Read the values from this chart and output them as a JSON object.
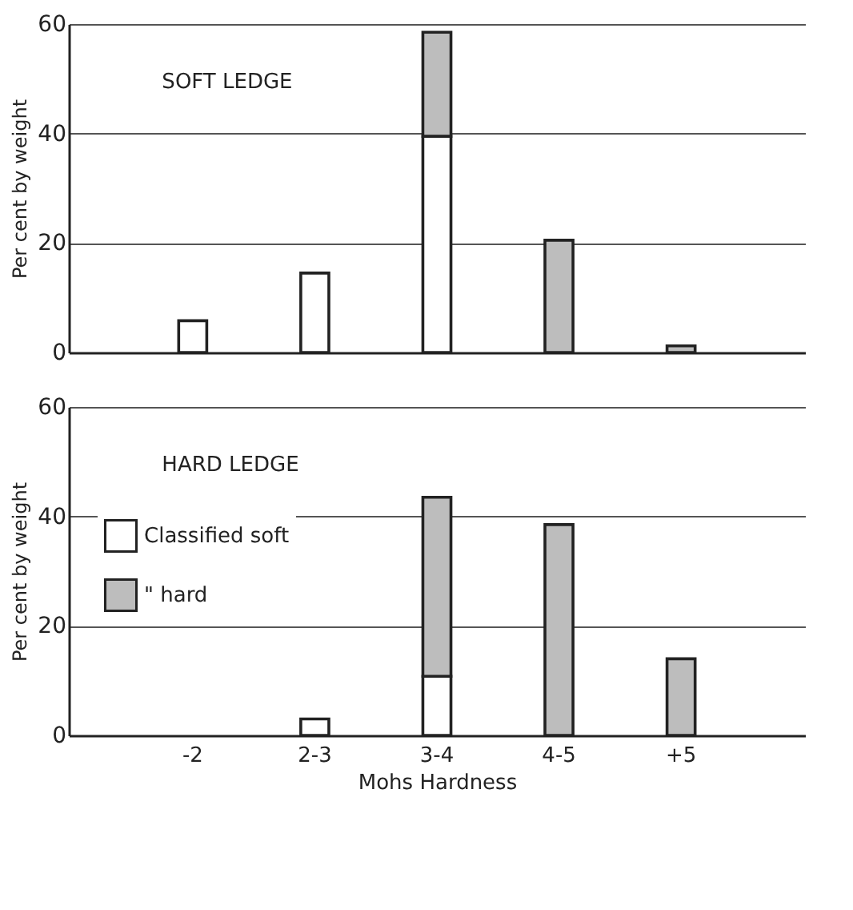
{
  "chart_data": [
    {
      "type": "bar",
      "title": "SOFT LEDGE",
      "ylabel": "Per cent by weight",
      "categories": [
        null,
        null,
        null,
        null,
        null
      ],
      "stacked": true,
      "ylim": [
        0,
        60
      ],
      "yticks": [
        0,
        20,
        40,
        60
      ],
      "grid": "y",
      "tick_labels": "y",
      "legend": false,
      "series": [
        {
          "color": "#ffffff",
          "values": [
            5.8,
            14.5,
            39.5,
            null,
            null
          ]
        },
        {
          "color": "#bdbdbd",
          "values": [
            null,
            null,
            19,
            20.5,
            1.2
          ]
        }
      ]
    },
    {
      "type": "bar",
      "title": "HARD LEDGE",
      "xlabel": "Mohs Hardness",
      "ylabel": "Per cent by weight",
      "categories": [
        "-2",
        "2-3",
        "3-4",
        "4-5",
        "+5"
      ],
      "stacked": true,
      "ylim": [
        0,
        60
      ],
      "yticks": [
        0,
        20,
        40,
        60
      ],
      "grid": "y",
      "legend": "top left",
      "series": [
        {
          "name": "Classified soft",
          "color": "#ffffff",
          "values": [
            null,
            3,
            10.8,
            null,
            null
          ]
        },
        {
          "name": "\"     hard",
          "color": "#bdbdbd",
          "values": [
            null,
            null,
            32.7,
            38.5,
            14
          ]
        }
      ]
    }
  ]
}
